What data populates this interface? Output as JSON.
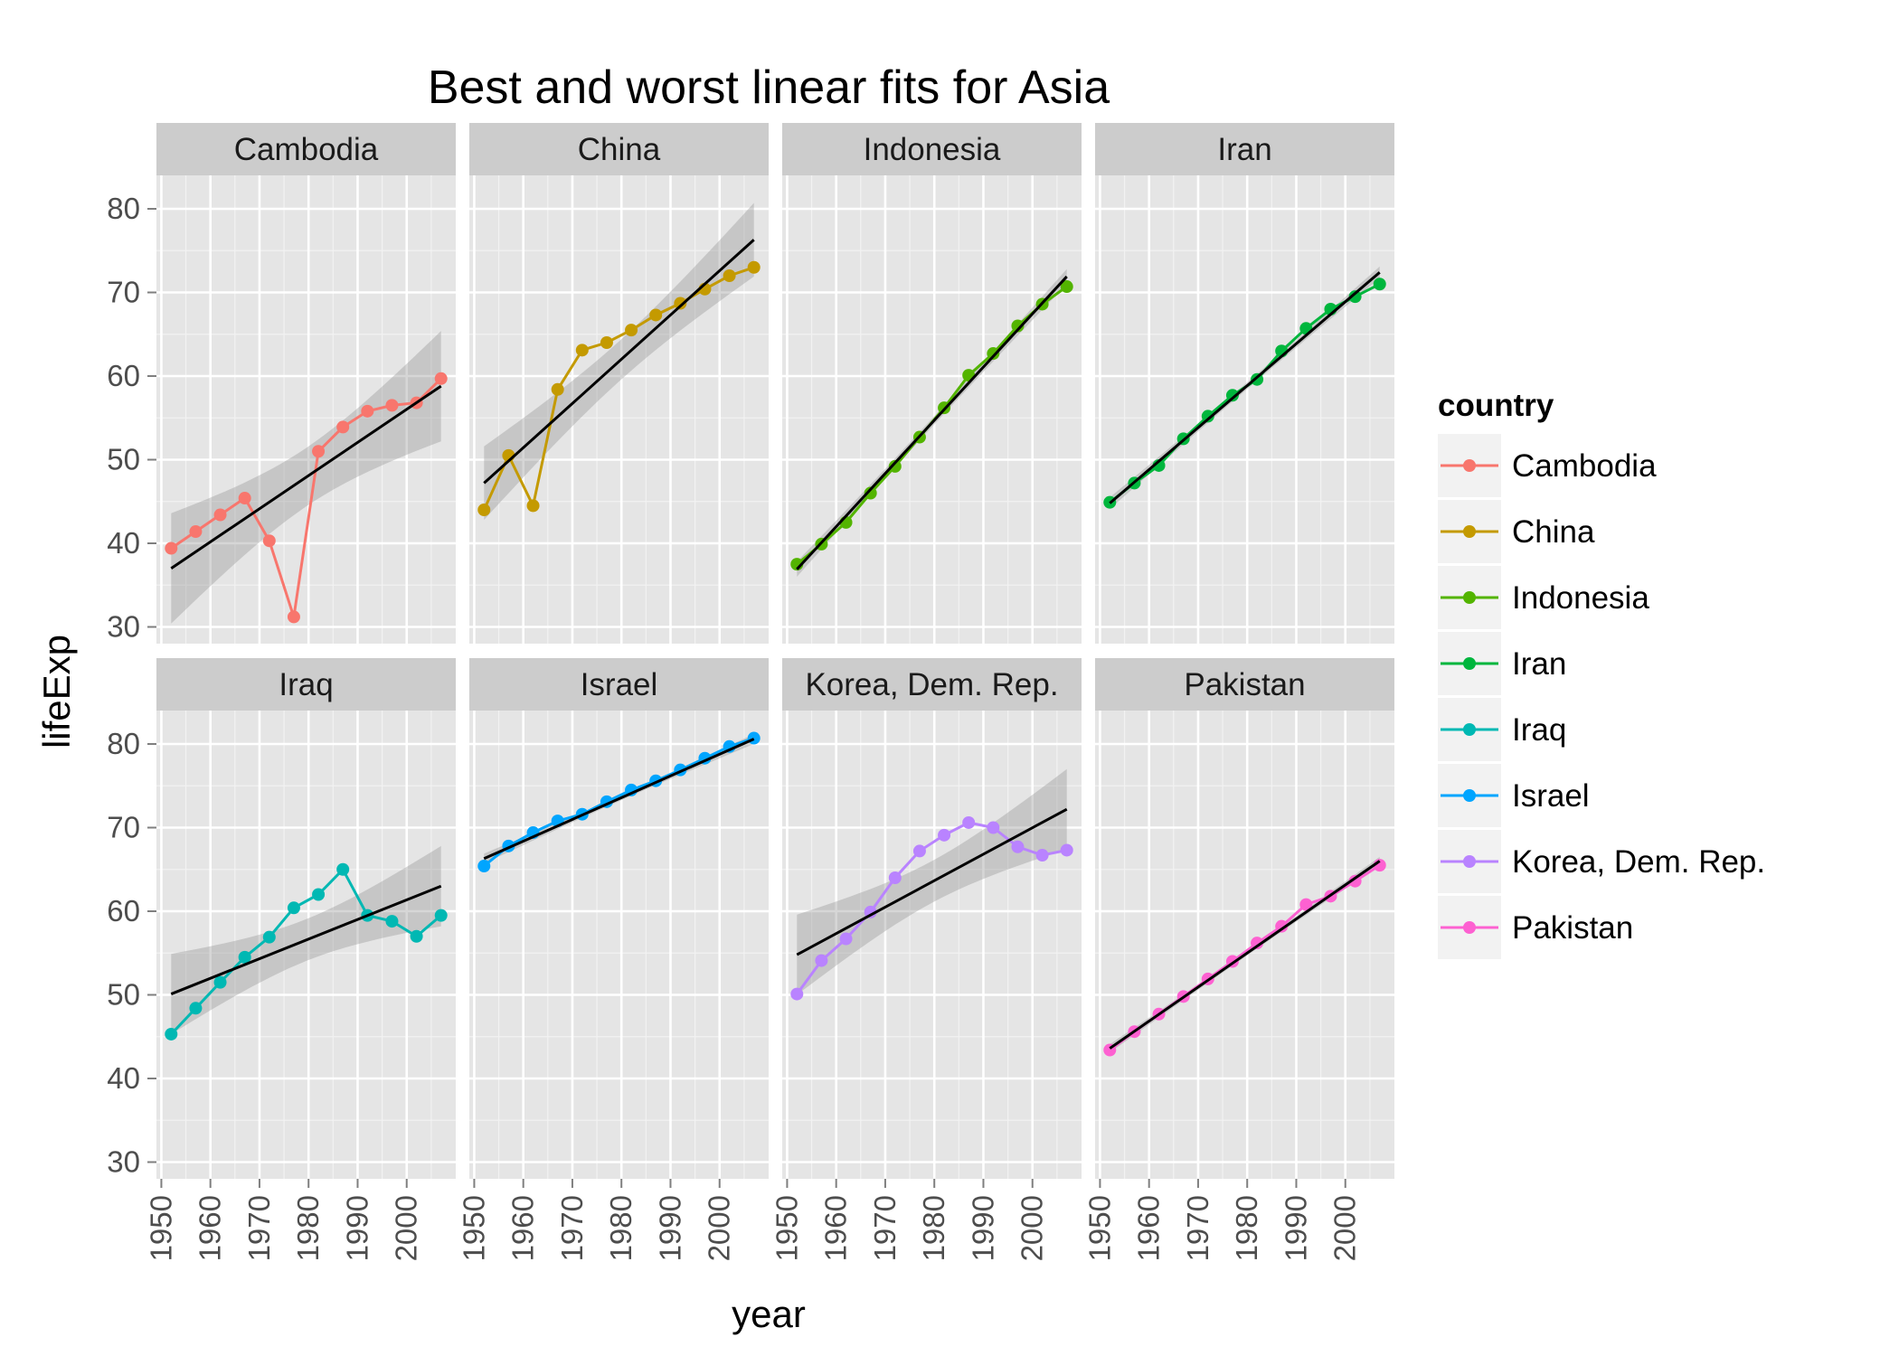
{
  "chart_data": {
    "type": "line",
    "title": "Best and worst linear fits for Asia",
    "xlabel": "year",
    "ylabel": "lifeExp",
    "xlim": [
      1949,
      2010
    ],
    "ylim": [
      28,
      84
    ],
    "x_ticks": [
      1950,
      1960,
      1970,
      1980,
      1990,
      2000
    ],
    "y_ticks": [
      30,
      40,
      50,
      60,
      70,
      80
    ],
    "grid": true,
    "legend": {
      "title": "country",
      "position": "right"
    },
    "x": [
      1952,
      1957,
      1962,
      1967,
      1972,
      1977,
      1982,
      1987,
      1992,
      1997,
      2002,
      2007
    ],
    "series": [
      {
        "name": "Cambodia",
        "color": "#F8766D",
        "values": [
          39.4,
          41.4,
          43.4,
          45.4,
          40.3,
          31.2,
          51.0,
          53.9,
          55.8,
          56.5,
          56.8,
          59.7
        ],
        "fit": [
          37.0,
          58.8
        ],
        "band_width": [
          6.6,
          3.5,
          6.6
        ]
      },
      {
        "name": "China",
        "color": "#C49A00",
        "values": [
          44.0,
          50.5,
          44.5,
          58.4,
          63.1,
          64.0,
          65.5,
          67.3,
          68.7,
          70.4,
          72.0,
          73.0
        ],
        "fit": [
          47.2,
          76.3
        ],
        "band_width": [
          4.4,
          2.4,
          4.4
        ]
      },
      {
        "name": "Indonesia",
        "color": "#53B400",
        "values": [
          37.5,
          39.9,
          42.5,
          46.0,
          49.2,
          52.7,
          56.2,
          60.1,
          62.7,
          66.0,
          68.6,
          70.7
        ],
        "fit": [
          36.9,
          71.9
        ],
        "band_width": [
          0.9,
          0.5,
          0.9
        ]
      },
      {
        "name": "Iran",
        "color": "#00B63D",
        "values": [
          44.9,
          47.2,
          49.3,
          52.5,
          55.2,
          57.7,
          59.6,
          63.0,
          65.7,
          68.0,
          69.5,
          71.0
        ],
        "fit": [
          44.8,
          72.4
        ],
        "band_width": [
          0.7,
          0.4,
          0.7
        ]
      },
      {
        "name": "Iraq",
        "color": "#00B8B3",
        "values": [
          45.3,
          48.4,
          51.5,
          54.5,
          56.9,
          60.4,
          62.0,
          65.0,
          59.5,
          58.8,
          57.0,
          59.5
        ],
        "fit": [
          50.1,
          63.0
        ],
        "band_width": [
          4.8,
          2.5,
          4.8
        ]
      },
      {
        "name": "Israel",
        "color": "#00A5FF",
        "values": [
          65.4,
          67.8,
          69.4,
          70.8,
          71.6,
          73.1,
          74.5,
          75.6,
          76.9,
          78.3,
          79.7,
          80.7
        ],
        "fit": [
          66.3,
          80.6
        ],
        "band_width": [
          0.6,
          0.3,
          0.6
        ]
      },
      {
        "name": "Korea, Dem. Rep.",
        "color": "#B983FF",
        "values": [
          50.1,
          54.1,
          56.7,
          59.9,
          64.0,
          67.2,
          69.1,
          70.6,
          70.0,
          67.7,
          66.7,
          67.3
        ],
        "fit": [
          54.8,
          72.2
        ],
        "band_width": [
          4.8,
          2.5,
          4.8
        ]
      },
      {
        "name": "Pakistan",
        "color": "#FD61D1",
        "values": [
          43.4,
          45.6,
          47.7,
          49.8,
          51.9,
          54.0,
          56.2,
          58.2,
          60.8,
          61.8,
          63.6,
          65.5
        ],
        "fit": [
          43.6,
          66.0
        ],
        "band_width": [
          0.5,
          0.3,
          0.5
        ]
      }
    ]
  }
}
